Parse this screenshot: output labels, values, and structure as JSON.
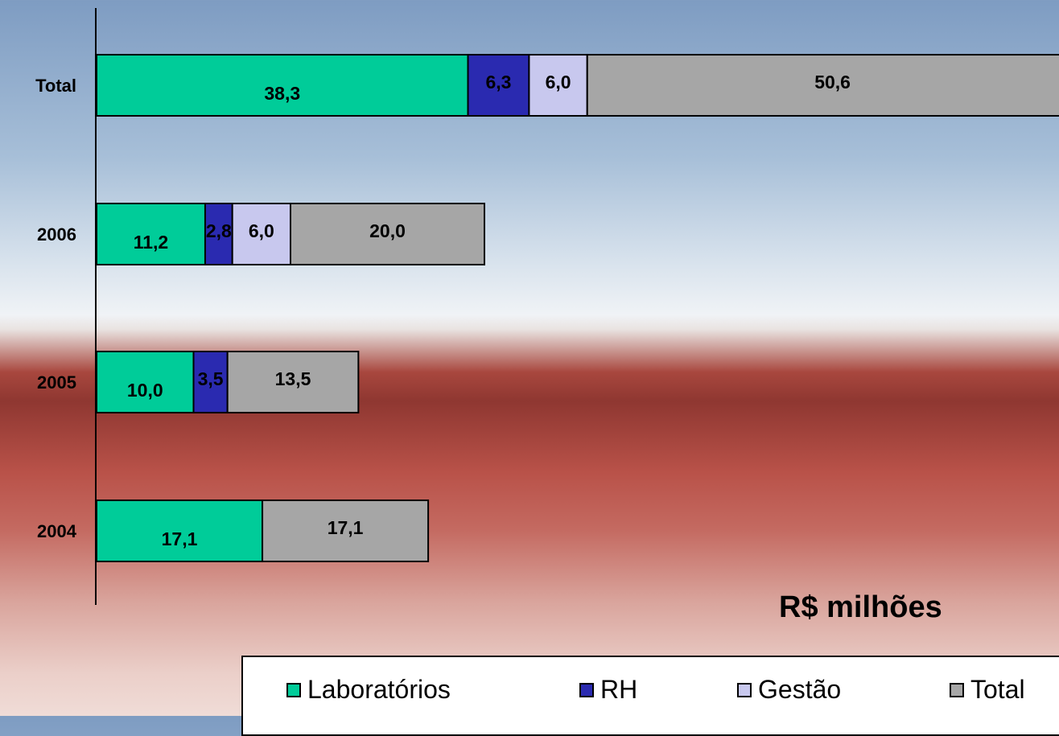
{
  "chart_data": {
    "type": "bar",
    "orientation": "horizontal",
    "stacked": true,
    "categories": [
      "Total",
      "2006",
      "2005",
      "2004"
    ],
    "series": [
      {
        "name": "Laboratórios",
        "color": "#00cc99",
        "values": [
          38.3,
          11.2,
          10.0,
          17.1
        ],
        "labels": [
          "38,3",
          "11,2",
          "10,0",
          "17,1"
        ]
      },
      {
        "name": "RH",
        "color": "#2a2ab0",
        "values": [
          6.3,
          2.8,
          3.5,
          null
        ],
        "labels": [
          "6,3",
          "2,8",
          "3,5",
          ""
        ]
      },
      {
        "name": "Gestão",
        "color": "#c8c8ee",
        "values": [
          6.0,
          6.0,
          null,
          null
        ],
        "labels": [
          "6,0",
          "6,0",
          "",
          ""
        ]
      },
      {
        "name": "Total",
        "color": "#a6a6a6",
        "values": [
          50.6,
          20.0,
          13.5,
          17.1
        ],
        "labels": [
          "50,6",
          "20,0",
          "13,5",
          "17,1"
        ]
      }
    ],
    "unit_label": "R$ milhões",
    "legend_position": "bottom-right",
    "grid": false
  }
}
